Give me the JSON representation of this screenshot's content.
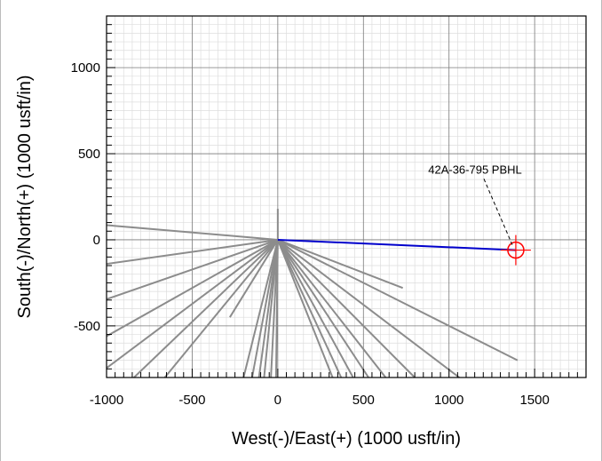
{
  "chart_data": {
    "type": "line",
    "title": "",
    "xlabel": "West(-)/East(+) (1000 usft/in)",
    "ylabel": "South(-)/North(+) (1000 usft/in)",
    "xlim": [
      -1000,
      1800
    ],
    "ylim": [
      -800,
      1300
    ],
    "xticks": [
      -1000,
      -500,
      0,
      500,
      1000,
      1500
    ],
    "yticks": [
      -500,
      0,
      500,
      1000
    ],
    "grid": true,
    "colors": {
      "offset_wells": "#8c8c8c",
      "subject_well": "#0000cc",
      "target": "#ff0000",
      "grid_major": "#7a7a7a",
      "grid_minor": "#dddddd"
    },
    "annotation": {
      "text": "42A-36-795 PBHL",
      "label_at": [
        1100,
        385
      ],
      "points_to": [
        1390,
        -60
      ]
    },
    "subject_well": {
      "x": [
        0,
        1390
      ],
      "y": [
        0,
        -60
      ]
    },
    "target": {
      "x": 1390,
      "y": -60
    },
    "offset_wells": [
      {
        "x": [
          0,
          -1000
        ],
        "y": [
          0,
          85
        ]
      },
      {
        "x": [
          0,
          -1000
        ],
        "y": [
          0,
          -140
        ]
      },
      {
        "x": [
          0,
          -1000
        ],
        "y": [
          0,
          -345
        ]
      },
      {
        "x": [
          0,
          -1000
        ],
        "y": [
          0,
          -560
        ]
      },
      {
        "x": [
          0,
          -1000
        ],
        "y": [
          0,
          -745
        ]
      },
      {
        "x": [
          0,
          -840
        ],
        "y": [
          0,
          -800
        ]
      },
      {
        "x": [
          0,
          -660
        ],
        "y": [
          0,
          -800
        ]
      },
      {
        "x": [
          0,
          -280
        ],
        "y": [
          0,
          -450
        ]
      },
      {
        "x": [
          0,
          -200
        ],
        "y": [
          0,
          -800
        ]
      },
      {
        "x": [
          0,
          -150
        ],
        "y": [
          0,
          -800
        ]
      },
      {
        "x": [
          0,
          -110
        ],
        "y": [
          0,
          -800
        ]
      },
      {
        "x": [
          0,
          -80
        ],
        "y": [
          0,
          -800
        ]
      },
      {
        "x": [
          0,
          -40
        ],
        "y": [
          0,
          -800
        ]
      },
      {
        "x": [
          0,
          -10
        ],
        "y": [
          0,
          -800
        ]
      },
      {
        "x": [
          0,
          0
        ],
        "y": [
          0,
          180
        ]
      },
      {
        "x": [
          0,
          320
        ],
        "y": [
          0,
          -800
        ]
      },
      {
        "x": [
          0,
          370
        ],
        "y": [
          0,
          -800
        ]
      },
      {
        "x": [
          0,
          440
        ],
        "y": [
          0,
          -800
        ]
      },
      {
        "x": [
          0,
          530
        ],
        "y": [
          0,
          -800
        ]
      },
      {
        "x": [
          0,
          630
        ],
        "y": [
          0,
          -800
        ]
      },
      {
        "x": [
          0,
          800
        ],
        "y": [
          0,
          -800
        ]
      },
      {
        "x": [
          0,
          1060
        ],
        "y": [
          0,
          -800
        ]
      },
      {
        "x": [
          0,
          1400
        ],
        "y": [
          0,
          -700
        ]
      },
      {
        "x": [
          0,
          730
        ],
        "y": [
          0,
          -280
        ]
      }
    ]
  }
}
